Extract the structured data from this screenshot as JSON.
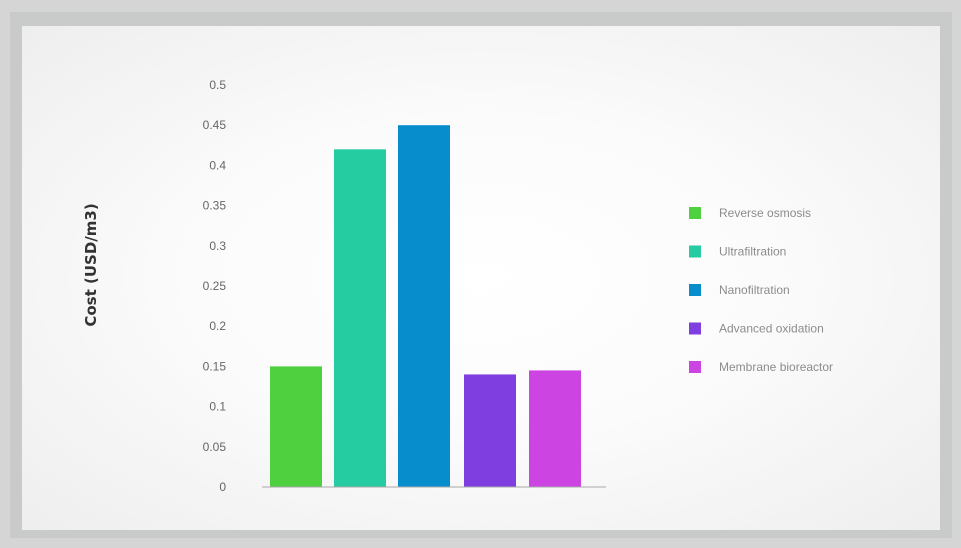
{
  "chart_data": {
    "type": "bar",
    "title": "",
    "xlabel": "",
    "ylabel": "Cost   (USD/m3)",
    "ylim": [
      0,
      0.5
    ],
    "yticks": [
      "0",
      "0.05",
      "0.1",
      "0.15",
      "0.2",
      "0.25",
      "0.3",
      "0.35",
      "0.4",
      "0.45",
      "0.5"
    ],
    "grid": false,
    "legend_position": "right",
    "categories": [
      "Reverse osmosis",
      "Ultrafiltration",
      "Nanofiltration",
      "Advanced oxidation",
      "Membrane bioreactor"
    ],
    "values": [
      0.15,
      0.42,
      0.45,
      0.14,
      0.145
    ],
    "colors": [
      "#4fd03f",
      "#25cca2",
      "#078dcc",
      "#7f3ee0",
      "#cc45e3"
    ]
  }
}
